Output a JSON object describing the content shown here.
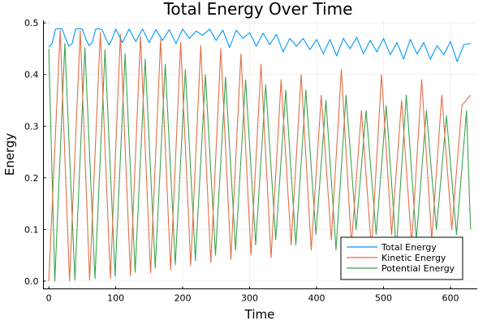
{
  "chart_data": {
    "type": "line",
    "title": "Total Energy Over Time",
    "xlabel": "Time",
    "ylabel": "Energy",
    "xlim": [
      -8,
      640
    ],
    "ylim": [
      -0.015,
      0.505
    ],
    "xticks": [
      0,
      100,
      200,
      300,
      400,
      500,
      600
    ],
    "yticks": [
      0.0,
      0.1,
      0.2,
      0.3,
      0.4,
      0.5
    ],
    "xtick_labels": [
      "0",
      "100",
      "200",
      "300",
      "400",
      "500",
      "600"
    ],
    "ytick_labels": [
      "0.0",
      "0.1",
      "0.2",
      "0.3",
      "0.4",
      "0.5"
    ],
    "grid": true,
    "legend_position": "bottom-right",
    "series": [
      {
        "name": "Total Energy",
        "color": "#009af9",
        "x": [
          0,
          5,
          10,
          15,
          20,
          25,
          30,
          35,
          40,
          45,
          50,
          55,
          60,
          65,
          70,
          75,
          80,
          85,
          90,
          95,
          100,
          110,
          120,
          130,
          140,
          150,
          160,
          170,
          180,
          190,
          200,
          210,
          220,
          230,
          240,
          250,
          260,
          270,
          280,
          290,
          300,
          310,
          320,
          330,
          340,
          350,
          360,
          370,
          380,
          390,
          400,
          410,
          420,
          430,
          440,
          450,
          460,
          470,
          480,
          490,
          500,
          510,
          520,
          530,
          540,
          550,
          560,
          570,
          580,
          590,
          600,
          610,
          620,
          630
        ],
        "values": [
          0.453,
          0.46,
          0.488,
          0.489,
          0.488,
          0.47,
          0.455,
          0.46,
          0.488,
          0.489,
          0.488,
          0.47,
          0.456,
          0.462,
          0.488,
          0.489,
          0.486,
          0.47,
          0.457,
          0.47,
          0.488,
          0.462,
          0.488,
          0.464,
          0.488,
          0.462,
          0.487,
          0.466,
          0.487,
          0.46,
          0.488,
          0.47,
          0.484,
          0.476,
          0.488,
          0.466,
          0.486,
          0.452,
          0.486,
          0.47,
          0.481,
          0.455,
          0.48,
          0.458,
          0.478,
          0.444,
          0.47,
          0.455,
          0.47,
          0.448,
          0.468,
          0.44,
          0.468,
          0.436,
          0.47,
          0.45,
          0.472,
          0.44,
          0.466,
          0.444,
          0.47,
          0.438,
          0.462,
          0.43,
          0.468,
          0.44,
          0.462,
          0.43,
          0.456,
          0.438,
          0.464,
          0.425,
          0.458,
          0.46
        ]
      },
      {
        "name": "Kinetic Energy",
        "color": "#e26f46",
        "x": [
          0,
          17,
          31,
          47,
          61,
          77,
          92,
          107,
          122,
          137,
          152,
          167,
          182,
          197,
          212,
          227,
          242,
          257,
          272,
          287,
          302,
          317,
          332,
          347,
          362,
          377,
          392,
          407,
          422,
          437,
          452,
          467,
          482,
          497,
          512,
          527,
          542,
          557,
          572,
          587,
          602,
          617,
          630
        ],
        "values": [
          0.0,
          0.485,
          0.0,
          0.485,
          0.002,
          0.482,
          0.005,
          0.478,
          0.01,
          0.474,
          0.016,
          0.468,
          0.022,
          0.462,
          0.03,
          0.456,
          0.036,
          0.45,
          0.042,
          0.44,
          0.05,
          0.42,
          0.045,
          0.39,
          0.07,
          0.4,
          0.06,
          0.36,
          0.08,
          0.41,
          0.07,
          0.33,
          0.06,
          0.4,
          0.09,
          0.35,
          0.07,
          0.39,
          0.08,
          0.36,
          0.1,
          0.34,
          0.36
        ]
      },
      {
        "name": "Potential Energy",
        "color": "#3da44d",
        "x": [
          0,
          9,
          24,
          39,
          54,
          69,
          84,
          99,
          114,
          129,
          144,
          159,
          174,
          189,
          204,
          219,
          234,
          249,
          264,
          279,
          294,
          309,
          324,
          339,
          354,
          369,
          384,
          399,
          414,
          429,
          444,
          459,
          474,
          489,
          504,
          519,
          534,
          549,
          564,
          579,
          594,
          609,
          624,
          630
        ],
        "values": [
          0.45,
          0.0,
          0.46,
          0.002,
          0.452,
          0.005,
          0.448,
          0.01,
          0.44,
          0.017,
          0.43,
          0.025,
          0.42,
          0.032,
          0.41,
          0.04,
          0.4,
          0.05,
          0.395,
          0.06,
          0.39,
          0.07,
          0.38,
          0.08,
          0.37,
          0.07,
          0.37,
          0.09,
          0.35,
          0.06,
          0.36,
          0.1,
          0.33,
          0.09,
          0.34,
          0.06,
          0.36,
          0.08,
          0.33,
          0.1,
          0.32,
          0.09,
          0.33,
          0.1
        ]
      }
    ]
  }
}
